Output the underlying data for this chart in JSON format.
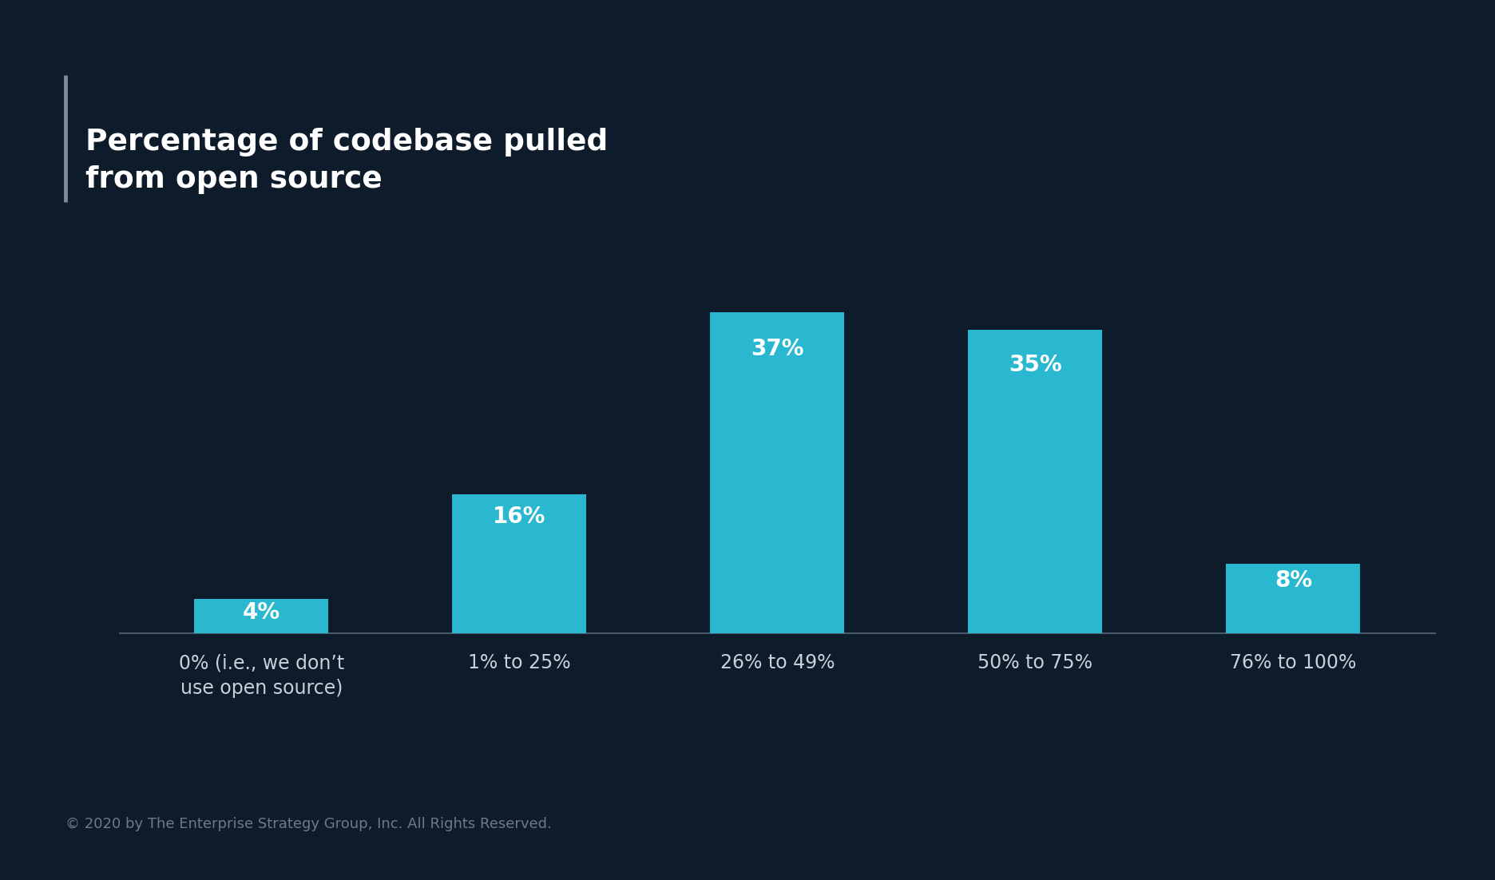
{
  "title_line1": "Percentage of codebase pulled",
  "title_line2": "from open source",
  "categories": [
    "0% (i.e., we don’t\nuse open source)",
    "1% to 25%",
    "26% to 49%",
    "50% to 75%",
    "76% to 100%"
  ],
  "values": [
    4,
    16,
    37,
    35,
    8
  ],
  "bar_color": "#29b8d0",
  "background_color": "#0d1b2a",
  "title_color": "#ffffff",
  "label_color": "#ffffff",
  "tick_label_color": "#c8d0d8",
  "footer_color": "#6b7a8d",
  "footer_text": "© 2020 by The Enterprise Strategy Group, Inc. All Rights Reserved.",
  "title_bar_color": "#7a8a9a",
  "axis_line_color": "#4a5a6a",
  "value_label_fontsize": 20,
  "tick_label_fontsize": 17,
  "title_fontsize": 27,
  "footer_fontsize": 13
}
